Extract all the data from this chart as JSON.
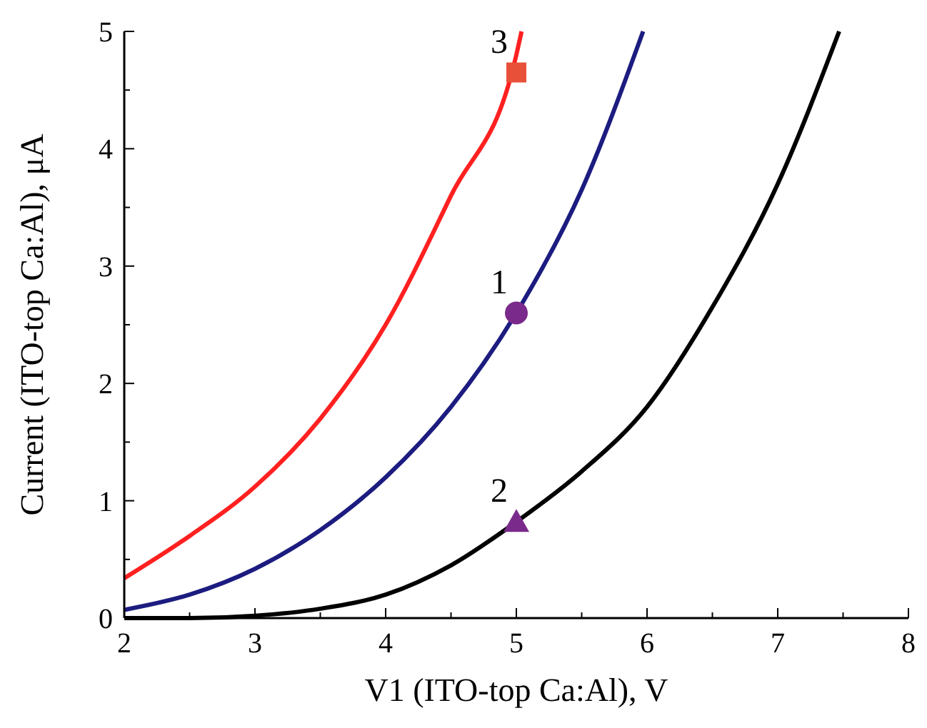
{
  "chart_data": {
    "type": "line",
    "xlabel": "V1 (ITO-top Ca:Al), V",
    "ylabel": "Current (ITO-top Ca:Al), μA",
    "xlim": [
      2,
      8
    ],
    "xticks": [
      2,
      {
        "value": 2.5,
        "label": null
      },
      3,
      {
        "value": 3.5,
        "label": null
      },
      4,
      {
        "value": 4.5,
        "label": null
      },
      5,
      {
        "value": 5.5,
        "label": null
      },
      6,
      {
        "value": 6.5,
        "label": null
      },
      7,
      {
        "value": 7.5,
        "label": null
      },
      8
    ],
    "ylim": [
      0,
      5
    ],
    "yticks": [
      0,
      {
        "value": 0.5,
        "label": null
      },
      1,
      {
        "value": 1.5,
        "label": null
      },
      2,
      {
        "value": 2.5,
        "label": null
      },
      3,
      {
        "value": 3.5,
        "label": null
      },
      4,
      {
        "value": 4.5,
        "label": null
      },
      5
    ],
    "grid": false,
    "line_style": "solid",
    "series": [
      {
        "color": "#ff2020",
        "marker": "none",
        "x": [
          2,
          2.5,
          3,
          3.5,
          4,
          4.5,
          5,
          5.04
        ],
        "values": [
          0.34,
          0.7,
          1.12,
          1.7,
          2.5,
          3.6,
          4.8,
          5
        ]
      },
      {
        "color": "#1c1c80",
        "marker": "none",
        "x": [
          2,
          2.5,
          3,
          3.5,
          4,
          4.5,
          5,
          5.5,
          5.97
        ],
        "values": [
          0.07,
          0.2,
          0.42,
          0.75,
          1.2,
          1.8,
          2.6,
          3.65,
          5
        ]
      },
      {
        "color": "#000000",
        "marker": "none",
        "x": [
          2,
          2.5,
          3,
          3.5,
          4,
          4.5,
          5,
          5.5,
          6,
          6.5,
          7,
          7.47
        ],
        "values": [
          0,
          0,
          0.02,
          0.08,
          0.2,
          0.45,
          0.82,
          1.25,
          1.8,
          2.65,
          3.7,
          5
        ]
      },
      {
        "type": "scatter",
        "name": "1",
        "color": "#7a2a8a",
        "marker": "circle",
        "x": [
          5
        ],
        "values": [
          2.6
        ]
      },
      {
        "type": "scatter",
        "name": "2",
        "color": "#7a2a8a",
        "marker": "triangle",
        "x": [
          5
        ],
        "values": [
          0.82
        ]
      },
      {
        "type": "scatter",
        "name": "3",
        "color": "#e8503a",
        "marker": "square",
        "x": [
          5
        ],
        "values": [
          4.65
        ]
      }
    ]
  }
}
